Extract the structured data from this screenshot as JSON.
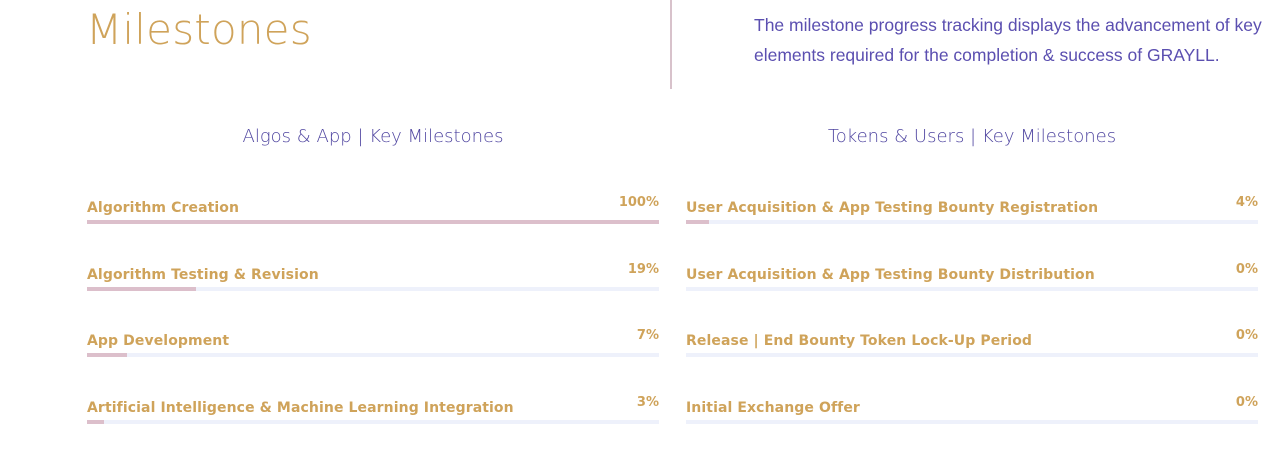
{
  "header": {
    "title": "Milestones",
    "description": "The milestone progress tracking displays the advancement of key elements required for the completion & success of GRAYLL."
  },
  "colors": {
    "title_gold": "#cfa35a",
    "heading_purple": "#4f45a0",
    "bar_fill": "#dcbfcb",
    "bar_track": "#eef1fb"
  },
  "left": {
    "heading": "Algos & App | Key Milestones",
    "items": [
      {
        "label": "Algorithm Creation",
        "percent_text": "100%",
        "progress": 100
      },
      {
        "label": "Algorithm Testing & Revision",
        "percent_text": "19%",
        "progress": 19
      },
      {
        "label": "App Development",
        "percent_text": "7%",
        "progress": 7
      },
      {
        "label": "Artificial Intelligence & Machine Learning Integration",
        "percent_text": "3%",
        "progress": 3
      }
    ]
  },
  "right": {
    "heading": "Tokens & Users | Key Milestones",
    "items": [
      {
        "label": "User Acquisition & App Testing Bounty Registration",
        "percent_text": "4%",
        "progress": 4
      },
      {
        "label": "User Acquisition & App Testing Bounty Distribution",
        "percent_text": "0%",
        "progress": 0
      },
      {
        "label": "Release | End Bounty Token Lock-Up Period",
        "percent_text": "0%",
        "progress": 0
      },
      {
        "label": "Initial Exchange Offer",
        "percent_text": "0%",
        "progress": 0
      }
    ]
  }
}
